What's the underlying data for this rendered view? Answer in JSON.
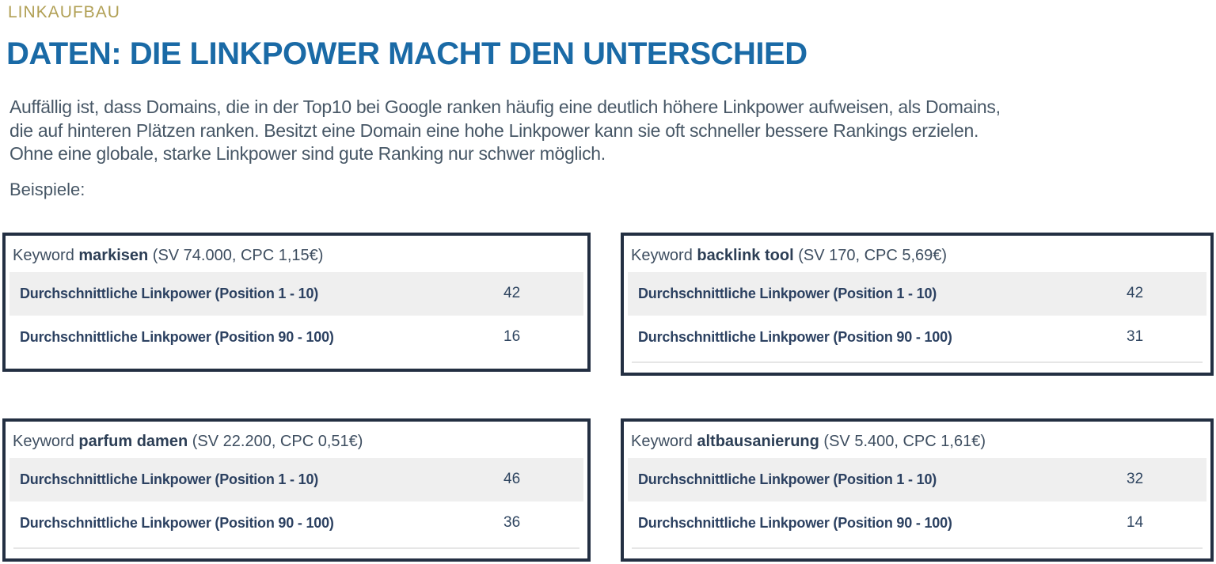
{
  "header": {
    "eyebrow": "LINKAUFBAU",
    "title": "DATEN: DIE LINKPOWER MACHT DEN UNTERSCHIED"
  },
  "intro": {
    "lines": [
      "Auffällig ist, dass Domains, die in der Top10 bei Google ranken häufig eine deutlich höhere Linkpower aufweisen, als Domains,",
      "die auf hinteren Plätzen ranken. Besitzt eine Domain eine hohe Linkpower kann sie oft schneller bessere Rankings erzielen.",
      "Ohne eine globale, starke Linkpower sind gute Ranking nur schwer möglich."
    ],
    "examples_label": "Beispiele:"
  },
  "boxes": [
    {
      "prefix": "Keyword",
      "keyword": "markisen",
      "meta": "(SV 74.000, CPC 1,15€)",
      "rows": [
        {
          "label": "Durchschnittliche Linkpower (Position 1 - 10)",
          "value": "42"
        },
        {
          "label": "Durchschnittliche Linkpower (Position 90 - 100)",
          "value": "16"
        }
      ]
    },
    {
      "prefix": "Keyword",
      "keyword": "backlink tool",
      "meta": "(SV 170, CPC 5,69€)",
      "rows": [
        {
          "label": "Durchschnittliche Linkpower (Position 1 - 10)",
          "value": "42"
        },
        {
          "label": "Durchschnittliche Linkpower (Position 90 - 100)",
          "value": "31"
        }
      ]
    },
    {
      "prefix": "Keyword",
      "keyword": "parfum damen",
      "meta": "(SV 22.200, CPC 0,51€)",
      "rows": [
        {
          "label": "Durchschnittliche Linkpower (Position 1 - 10)",
          "value": "46"
        },
        {
          "label": "Durchschnittliche Linkpower (Position 90 - 100)",
          "value": "36"
        }
      ]
    },
    {
      "prefix": "Keyword",
      "keyword": "altbausanierung",
      "meta": "(SV 5.400, CPC 1,61€)",
      "rows": [
        {
          "label": "Durchschnittliche Linkpower (Position 1 - 10)",
          "value": "32"
        },
        {
          "label": "Durchschnittliche Linkpower (Position 90 - 100)",
          "value": "14"
        }
      ]
    }
  ],
  "colors": {
    "eyebrow_gold": "#b1a055",
    "title_blue": "#1a6aa6",
    "body_slate": "#475766",
    "row_navy": "#2c4161",
    "box_border_navy": "#232f42",
    "row_stripe_gray": "#efefef",
    "divider_gray": "#e6e6e6"
  }
}
